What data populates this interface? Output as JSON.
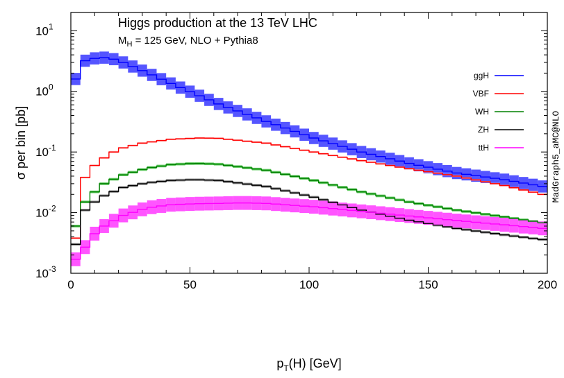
{
  "chart_data": {
    "type": "line",
    "title": "Higgs production at the 13 TeV LHC",
    "subtitle": {
      "base": "M",
      "sub": "H",
      "rest": " = 125 GeV, NLO + Pythia8"
    },
    "xlabel": {
      "base": "p",
      "sub": "T",
      "rest": "(H) [GeV]"
    },
    "ylabel": "σ per bin [pb]",
    "watermark": "MadGraph5_aMC@NLO",
    "xlim": [
      0,
      200
    ],
    "ylim": [
      0.001,
      20
    ],
    "yscale": "log",
    "grid": false,
    "legend_position": "top-right",
    "x_ticks": [
      0,
      50,
      100,
      150,
      200
    ],
    "x_tick_labels": [
      "0",
      "50",
      "100",
      "150",
      "200"
    ],
    "y_ticks": [
      0.001,
      0.01,
      0.1,
      1,
      10
    ],
    "y_tick_labels": [
      {
        "base": "10",
        "exp": "-3"
      },
      {
        "base": "10",
        "exp": "-2"
      },
      {
        "base": "10",
        "exp": "-1"
      },
      {
        "base": "10",
        "exp": "0"
      },
      {
        "base": "10",
        "exp": "1"
      }
    ],
    "bin_width": 4,
    "series": [
      {
        "name": "ggH",
        "color": "#0000ff",
        "band_color": "#5555ff",
        "band_rel": 0.26,
        "anchors": [
          [
            0,
            1.6
          ],
          [
            4,
            3.2
          ],
          [
            8,
            3.5
          ],
          [
            12,
            3.6
          ],
          [
            16,
            3.4
          ],
          [
            20,
            3.0
          ],
          [
            28,
            2.2
          ],
          [
            40,
            1.35
          ],
          [
            60,
            0.62
          ],
          [
            80,
            0.32
          ],
          [
            100,
            0.17
          ],
          [
            120,
            0.1
          ],
          [
            140,
            0.065
          ],
          [
            160,
            0.045
          ],
          [
            180,
            0.035
          ],
          [
            196,
            0.027
          ]
        ]
      },
      {
        "name": "VBF",
        "color": "#ff0000",
        "band_color": "#ff9999",
        "band_rel": 0.03,
        "anchors": [
          [
            0,
            0.0038
          ],
          [
            4,
            0.038
          ],
          [
            8,
            0.06
          ],
          [
            12,
            0.08
          ],
          [
            16,
            0.1
          ],
          [
            20,
            0.117
          ],
          [
            28,
            0.14
          ],
          [
            40,
            0.162
          ],
          [
            52,
            0.17
          ],
          [
            60,
            0.168
          ],
          [
            80,
            0.14
          ],
          [
            100,
            0.1
          ],
          [
            120,
            0.072
          ],
          [
            140,
            0.053
          ],
          [
            160,
            0.04
          ],
          [
            180,
            0.028
          ],
          [
            196,
            0.02
          ]
        ]
      },
      {
        "name": "WH",
        "color": "#008000",
        "band_color": "#66cc66",
        "band_rel": 0.05,
        "anchors": [
          [
            0,
            0.006
          ],
          [
            4,
            0.015
          ],
          [
            8,
            0.022
          ],
          [
            12,
            0.03
          ],
          [
            20,
            0.042
          ],
          [
            30,
            0.054
          ],
          [
            40,
            0.062
          ],
          [
            50,
            0.065
          ],
          [
            60,
            0.063
          ],
          [
            80,
            0.05
          ],
          [
            100,
            0.034
          ],
          [
            120,
            0.022
          ],
          [
            140,
            0.015
          ],
          [
            160,
            0.011
          ],
          [
            180,
            0.0085
          ],
          [
            196,
            0.0068
          ]
        ]
      },
      {
        "name": "ZH",
        "color": "#000000",
        "band_color": "#999999",
        "band_rel": 0.05,
        "anchors": [
          [
            0,
            0.003
          ],
          [
            4,
            0.011
          ],
          [
            8,
            0.015
          ],
          [
            12,
            0.019
          ],
          [
            20,
            0.026
          ],
          [
            30,
            0.031
          ],
          [
            40,
            0.034
          ],
          [
            50,
            0.035
          ],
          [
            60,
            0.034
          ],
          [
            80,
            0.027
          ],
          [
            100,
            0.018
          ],
          [
            120,
            0.011
          ],
          [
            140,
            0.0075
          ],
          [
            160,
            0.0055
          ],
          [
            180,
            0.0043
          ],
          [
            196,
            0.0036
          ]
        ]
      },
      {
        "name": "ttH",
        "color": "#ff00ff",
        "band_color": "#ff55ff",
        "band_rel": 0.3,
        "anchors": [
          [
            0,
            0.0017
          ],
          [
            4,
            0.0027
          ],
          [
            8,
            0.0045
          ],
          [
            12,
            0.006
          ],
          [
            20,
            0.009
          ],
          [
            30,
            0.012
          ],
          [
            40,
            0.0135
          ],
          [
            50,
            0.014
          ],
          [
            60,
            0.0142
          ],
          [
            70,
            0.0145
          ],
          [
            80,
            0.0142
          ],
          [
            100,
            0.0125
          ],
          [
            120,
            0.0105
          ],
          [
            140,
            0.0088
          ],
          [
            160,
            0.0074
          ],
          [
            180,
            0.0063
          ],
          [
            196,
            0.0055
          ]
        ]
      }
    ]
  }
}
